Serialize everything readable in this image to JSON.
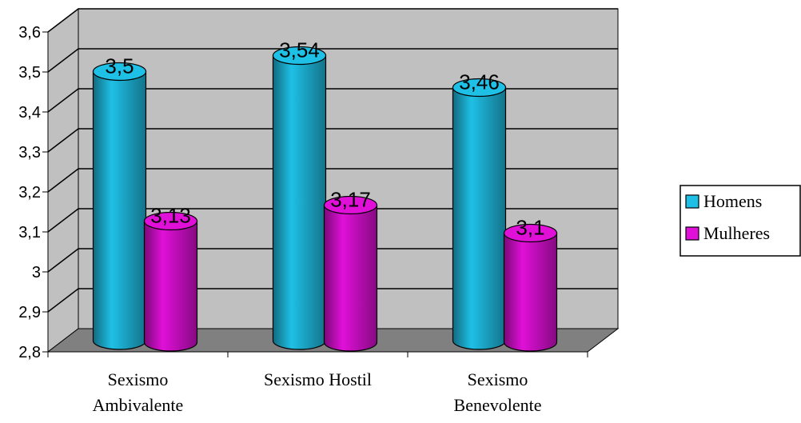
{
  "chart_data": {
    "type": "bar",
    "style": "3d-cylinder",
    "categories": [
      [
        "Sexismo",
        "Ambivalente"
      ],
      [
        "Sexismo Hostil"
      ],
      [
        "Sexismo",
        "Benevolente"
      ]
    ],
    "series": [
      {
        "name": "Homens",
        "values": [
          3.5,
          3.54,
          3.46
        ],
        "labels": [
          "3,5",
          "3,54",
          "3,46"
        ],
        "color": "#1fc0e6"
      },
      {
        "name": "Mulheres",
        "values": [
          3.13,
          3.17,
          3.1
        ],
        "labels": [
          "3,13",
          "3,17",
          "3,1"
        ],
        "color": "#e010d8"
      }
    ],
    "yticks": [
      {
        "value": 2.8,
        "label": "2,8"
      },
      {
        "value": 2.9,
        "label": "2,9"
      },
      {
        "value": 3.0,
        "label": "3"
      },
      {
        "value": 3.1,
        "label": "3,1"
      },
      {
        "value": 3.2,
        "label": "3,2"
      },
      {
        "value": 3.3,
        "label": "3,3"
      },
      {
        "value": 3.4,
        "label": "3,4"
      },
      {
        "value": 3.5,
        "label": "3,5"
      },
      {
        "value": 3.6,
        "label": "3,6"
      }
    ],
    "ylim": [
      2.8,
      3.6
    ],
    "grid": true,
    "wall_color": "#c0c0c0",
    "floor_color": "#808080",
    "legend_position": "right"
  }
}
